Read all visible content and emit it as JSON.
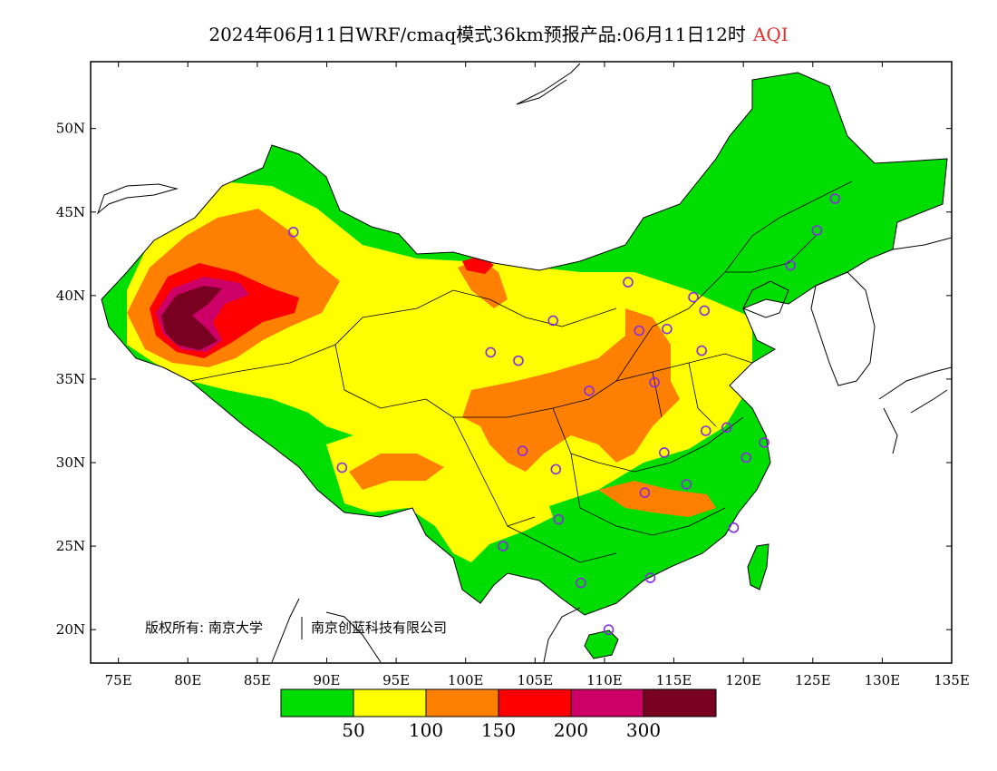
{
  "title": {
    "main": "2024年06月11日WRF/cmaq模式36km预报产品:06月11日12时",
    "variable": "AQI"
  },
  "map": {
    "lon_range": [
      73,
      135
    ],
    "lat_range": [
      18,
      54
    ],
    "lon_ticks": [
      "75E",
      "80E",
      "85E",
      "90E",
      "95E",
      "100E",
      "105E",
      "110E",
      "115E",
      "120E",
      "125E",
      "130E",
      "135E"
    ],
    "lat_ticks": [
      "50N",
      "45N",
      "40N",
      "35N",
      "30N",
      "25N",
      "20N"
    ],
    "copyright": "版权所有: 南京大学",
    "copyright_partner": "南京创蓝科技有限公司",
    "colors": {
      "good": "#00dd00",
      "moderate": "#ffff00",
      "usg": "#ff8000",
      "unhealthy": "#ff0000",
      "very_unhealthy": "#cc0066",
      "hazardous": "#7a0022",
      "station": "#8a2be2"
    },
    "stations": [
      {
        "lon": 87.6,
        "lat": 43.8
      },
      {
        "lon": 116.4,
        "lat": 39.9
      },
      {
        "lon": 117.2,
        "lat": 39.1
      },
      {
        "lon": 111.7,
        "lat": 40.8
      },
      {
        "lon": 114.5,
        "lat": 38.0
      },
      {
        "lon": 112.5,
        "lat": 37.9
      },
      {
        "lon": 106.3,
        "lat": 38.5
      },
      {
        "lon": 103.8,
        "lat": 36.1
      },
      {
        "lon": 101.8,
        "lat": 36.6
      },
      {
        "lon": 108.9,
        "lat": 34.3
      },
      {
        "lon": 113.6,
        "lat": 34.8
      },
      {
        "lon": 117.0,
        "lat": 36.7
      },
      {
        "lon": 117.3,
        "lat": 31.9
      },
      {
        "lon": 118.8,
        "lat": 32.1
      },
      {
        "lon": 121.5,
        "lat": 31.2
      },
      {
        "lon": 120.2,
        "lat": 30.3
      },
      {
        "lon": 114.3,
        "lat": 30.6
      },
      {
        "lon": 112.9,
        "lat": 28.2
      },
      {
        "lon": 115.9,
        "lat": 28.7
      },
      {
        "lon": 104.1,
        "lat": 30.7
      },
      {
        "lon": 106.5,
        "lat": 29.6
      },
      {
        "lon": 106.7,
        "lat": 26.6
      },
      {
        "lon": 102.7,
        "lat": 25.0
      },
      {
        "lon": 108.3,
        "lat": 22.8
      },
      {
        "lon": 113.3,
        "lat": 23.1
      },
      {
        "lon": 119.3,
        "lat": 26.1
      },
      {
        "lon": 110.3,
        "lat": 20.0
      },
      {
        "lon": 91.1,
        "lat": 29.7
      },
      {
        "lon": 125.3,
        "lat": 43.9
      },
      {
        "lon": 126.6,
        "lat": 45.8
      },
      {
        "lon": 123.4,
        "lat": 41.8
      }
    ]
  },
  "legend": {
    "colors": [
      "#00dd00",
      "#ffff00",
      "#ff8000",
      "#ff0000",
      "#cc0066",
      "#7a0022"
    ],
    "labels": [
      "50",
      "100",
      "150",
      "200",
      "300"
    ]
  }
}
